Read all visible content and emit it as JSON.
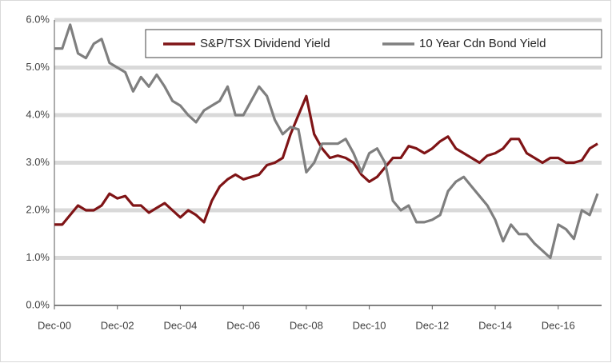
{
  "chart_data": {
    "type": "line",
    "categories": [
      "Dec-00",
      null,
      null,
      null,
      null,
      null,
      null,
      null,
      "Dec-02",
      null,
      null,
      null,
      null,
      null,
      null,
      null,
      "Dec-04",
      null,
      null,
      null,
      null,
      null,
      null,
      null,
      "Dec-06",
      null,
      null,
      null,
      null,
      null,
      null,
      null,
      "Dec-08",
      null,
      null,
      null,
      null,
      null,
      null,
      null,
      "Dec-10",
      null,
      null,
      null,
      null,
      null,
      null,
      null,
      "Dec-12",
      null,
      null,
      null,
      null,
      null,
      null,
      null,
      "Dec-14",
      null,
      null,
      null,
      null,
      null,
      null,
      null,
      "Dec-16",
      null,
      null,
      null,
      null,
      null
    ],
    "series": [
      {
        "name": "S&P/TSX Dividend Yield",
        "color": "#7f1416",
        "values": [
          1.7,
          1.7,
          1.9,
          2.1,
          2.0,
          2.0,
          2.1,
          2.35,
          2.25,
          2.3,
          2.1,
          2.1,
          1.95,
          2.05,
          2.15,
          2.0,
          1.85,
          2.0,
          1.9,
          1.75,
          2.2,
          2.5,
          2.65,
          2.75,
          2.65,
          2.7,
          2.75,
          2.95,
          3.0,
          3.1,
          3.6,
          4.0,
          4.4,
          3.6,
          3.3,
          3.1,
          3.15,
          3.1,
          3.0,
          2.75,
          2.6,
          2.7,
          2.9,
          3.1,
          3.1,
          3.35,
          3.3,
          3.2,
          3.3,
          3.45,
          3.55,
          3.3,
          3.2,
          3.1,
          3.0,
          3.15,
          3.2,
          3.3,
          3.5,
          3.5,
          3.2,
          3.1,
          3.0,
          3.1,
          3.1,
          3.0,
          3.0,
          3.05,
          3.3,
          3.4
        ]
      },
      {
        "name": "10 Year Cdn Bond Yield",
        "color": "#7f7f7f",
        "values": [
          5.4,
          5.4,
          5.9,
          5.3,
          5.2,
          5.5,
          5.6,
          5.1,
          5.0,
          4.9,
          4.5,
          4.8,
          4.6,
          4.85,
          4.6,
          4.3,
          4.2,
          4.0,
          3.85,
          4.1,
          4.2,
          4.3,
          4.6,
          4.0,
          4.0,
          4.3,
          4.6,
          4.4,
          3.9,
          3.6,
          3.75,
          3.7,
          2.8,
          3.0,
          3.4,
          3.4,
          3.4,
          3.5,
          3.2,
          2.8,
          3.2,
          3.3,
          3.0,
          2.2,
          2.0,
          2.1,
          1.75,
          1.75,
          1.8,
          1.9,
          2.4,
          2.6,
          2.7,
          2.5,
          2.3,
          2.1,
          1.8,
          1.35,
          1.7,
          1.5,
          1.5,
          1.3,
          1.15,
          1.0,
          1.7,
          1.6,
          1.4,
          2.0,
          1.9,
          2.35
        ]
      }
    ],
    "ylim": [
      0,
      6
    ],
    "yticks": [
      {
        "value": 0,
        "label": "0.0%"
      },
      {
        "value": 1,
        "label": "1.0%"
      },
      {
        "value": 2,
        "label": "2.0%"
      },
      {
        "value": 3,
        "label": "3.0%"
      },
      {
        "value": 4,
        "label": "4.0%"
      },
      {
        "value": 5,
        "label": "5.0%"
      },
      {
        "value": 6,
        "label": "6.0%"
      }
    ],
    "grid": true,
    "legend": "top"
  }
}
